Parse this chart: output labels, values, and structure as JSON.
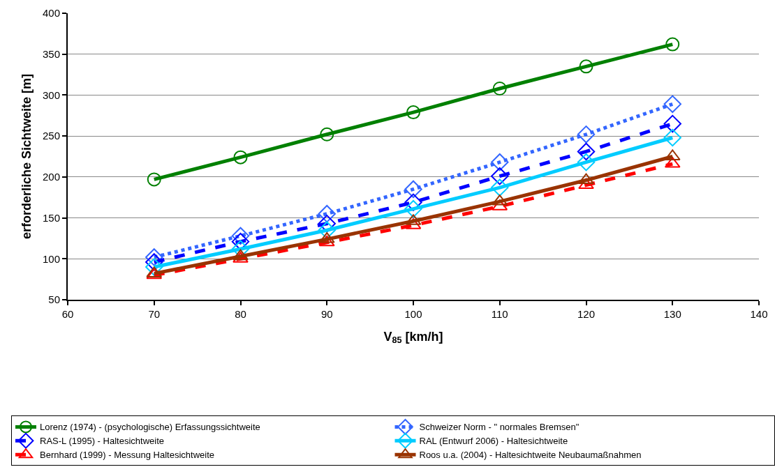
{
  "chart_data": {
    "type": "line",
    "xlabel": "V$_{85}$ [km/h]",
    "ylabel": "erforderliche Sichtweite [m]",
    "x": [
      70,
      80,
      90,
      100,
      110,
      120,
      130
    ],
    "series": [
      {
        "name": "Lorenz (1974) - (psychologische) Erfassungssichtweite",
        "color": "#008000",
        "marker": "circle",
        "line_style": "solid",
        "values": [
          197,
          224,
          252,
          279,
          308,
          335,
          362
        ]
      },
      {
        "name": "Schweizer Norm - \" normales Bremsen\"",
        "color": "#3366ff",
        "marker": "diamond",
        "line_style": "dotted",
        "values": [
          102,
          128,
          155,
          185,
          218,
          252,
          289
        ]
      },
      {
        "name": "RAS-L (1995) - Haltesichtweite",
        "color": "#0000ff",
        "marker": "diamond",
        "line_style": "dashed",
        "values": [
          96,
          121,
          143,
          169,
          201,
          231,
          265
        ]
      },
      {
        "name": "RAL (Entwurf 2006) - Haltesichtweite",
        "color": "#00ccff",
        "marker": "diamond",
        "line_style": "solid",
        "values": [
          90,
          112,
          135,
          161,
          187,
          218,
          248
        ]
      },
      {
        "name": "Bernhard (1999) - Messung Haltesichtweite",
        "color": "#ff0000",
        "marker": "triangle",
        "line_style": "dashed",
        "values": [
          80,
          100,
          120,
          141,
          164,
          190,
          216
        ]
      },
      {
        "name": "Roos u.a. (2004) - Haltesichtweite Neubaumaßnahmen",
        "color": "#993300",
        "marker": "triangle",
        "line_style": "solid",
        "values": [
          82,
          103,
          124,
          146,
          170,
          196,
          225
        ]
      }
    ],
    "xlim": [
      60,
      140
    ],
    "xticks": [
      60,
      70,
      80,
      90,
      100,
      110,
      120,
      130,
      140
    ],
    "ylim": [
      50,
      400
    ],
    "yticks": [
      50,
      100,
      150,
      200,
      250,
      300,
      350,
      400
    ],
    "grid": "y",
    "legend": "bottom"
  }
}
